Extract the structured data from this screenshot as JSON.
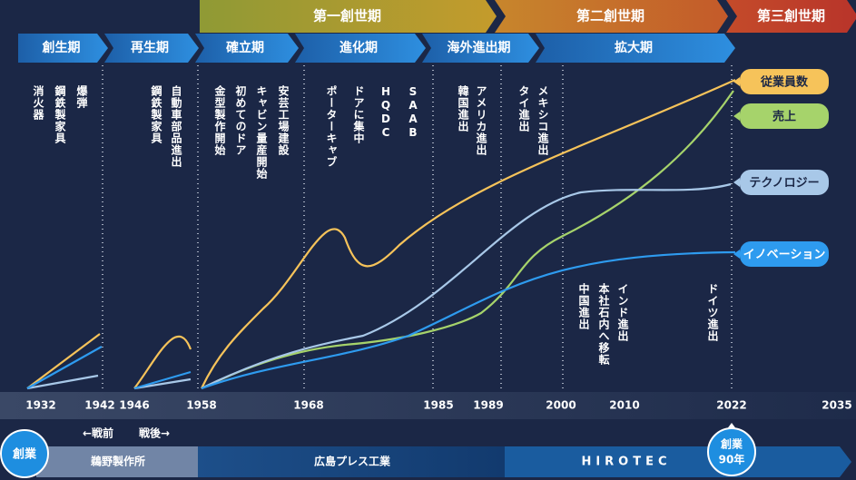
{
  "eras": [
    "第一創世期",
    "第二創世期",
    "第三創世期"
  ],
  "phases": [
    "創生期",
    "再生期",
    "確立期",
    "進化期",
    "海外進出期",
    "拡大期"
  ],
  "events": [
    "消火器",
    "鋼鉄製家具",
    "爆弾",
    "鋼鉄製家具",
    "自動車部品進出",
    "金型製作開始",
    "初めてのドア",
    "キャビン量産開始",
    "安芸工場建設",
    "ポーターキャブ",
    "ドアに集中",
    "HQDC",
    "SAAB",
    "韓国進出",
    "アメリカ進出",
    "タイ進出",
    "メキシコ進出",
    "中国進出",
    "本社石内へ移転",
    "インド進出",
    "ドイツ進出"
  ],
  "years": [
    "1932",
    "1942",
    "1946",
    "1958",
    "1968",
    "1985",
    "1989",
    "2000",
    "2010",
    "2022",
    "2035"
  ],
  "legend": [
    "従業員数",
    "売上",
    "テクノロジー",
    "イノベーション"
  ],
  "periods": [
    "←戦前",
    "戦後→"
  ],
  "companies": [
    "鵜野製作所",
    "広島プレス工業",
    "HIROTEC"
  ],
  "badges": {
    "founding": "創業",
    "anniversary": [
      "創業",
      "90年"
    ]
  }
}
